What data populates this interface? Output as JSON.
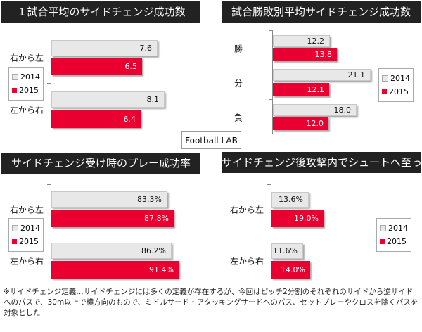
{
  "chart_data": [
    {
      "type": "bar",
      "title": "１試合平均のサイドチェンジ成功数",
      "categories": [
        "右から左",
        "左から右"
      ],
      "series": [
        {
          "name": "2014",
          "values": [
            7.6,
            8.1
          ],
          "labels": [
            "7.6",
            "8.1"
          ]
        },
        {
          "name": "2015",
          "values": [
            6.5,
            6.4
          ],
          "labels": [
            "6.5",
            "6.4"
          ]
        }
      ],
      "legend": "left"
    },
    {
      "type": "bar",
      "title": "試合勝敗別平均サイドチェンジ成功数",
      "categories": [
        "勝",
        "分",
        "負"
      ],
      "series": [
        {
          "name": "2014",
          "values": [
            12.2,
            21.1,
            18.0
          ],
          "labels": [
            "12.2",
            "21.1",
            "18.0"
          ]
        },
        {
          "name": "2015",
          "values": [
            13.8,
            12.1,
            12.0
          ],
          "labels": [
            "13.8",
            "12.1",
            "12.0"
          ]
        }
      ],
      "legend": "right"
    },
    {
      "type": "bar",
      "title": "サイドチェンジ受け時のプレー成功率",
      "categories": [
        "右から左",
        "左から右"
      ],
      "series": [
        {
          "name": "2014",
          "values": [
            83.3,
            86.2
          ],
          "labels": [
            "83.3%",
            "86.2%"
          ]
        },
        {
          "name": "2015",
          "values": [
            87.8,
            91.4
          ],
          "labels": [
            "87.8%",
            "91.4%"
          ]
        }
      ],
      "legend": "left"
    },
    {
      "type": "bar",
      "title": "サイドチェンジ後攻撃内でシュートへ至った割合",
      "categories": [
        "右から左",
        "左から右"
      ],
      "series": [
        {
          "name": "2014",
          "values": [
            13.6,
            11.6
          ],
          "labels": [
            "13.6%",
            "11.6%"
          ]
        },
        {
          "name": "2015",
          "values": [
            19.0,
            14.0
          ],
          "labels": [
            "19.0%",
            "14.0%"
          ]
        }
      ],
      "legend": "right"
    }
  ],
  "colors": {
    "2014": "#e8e8e8",
    "2015": "#ea0030"
  },
  "logo": "Football LAB",
  "footnote": "※サイドチェンジ定義…サイドチェンジには多くの定義が存在するが、今回はピッチ2分割のそれぞれのサイドから逆サイドへのパスで、30m以上で横方向のもので、ミドルサード・アタッキングサードへのパス、セットプレーやクロスを除くパスを対象とした"
}
